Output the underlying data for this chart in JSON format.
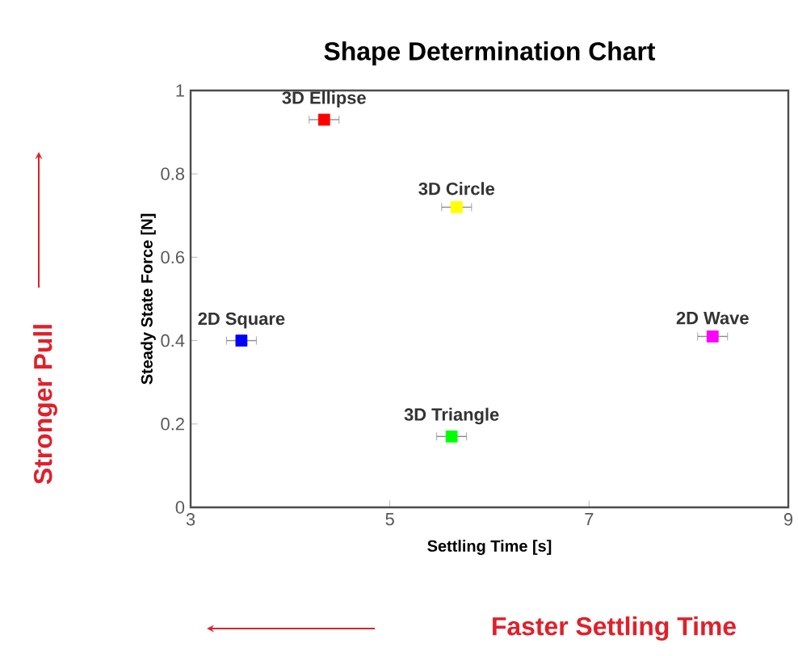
{
  "chart_data": {
    "type": "scatter",
    "title": "Shape Determination Chart",
    "xlabel": "Settling Time [s]",
    "ylabel": "Steady State Force [N]",
    "annotations": [
      "Stronger Pull",
      "Faster Settling Time"
    ],
    "xlim": [
      3,
      9
    ],
    "xticks": [
      3,
      5,
      7,
      9
    ],
    "ylim": [
      0,
      1
    ],
    "yticks": [
      0,
      0.2,
      0.4,
      0.6,
      0.8,
      1
    ],
    "marker": "square",
    "series": [
      {
        "name": "3D Ellipse",
        "color": "#ff0000",
        "x": [
          4.34
        ],
        "values": [
          0.93
        ],
        "xerrors": [
          0.15
        ]
      },
      {
        "name": "3D Circle",
        "color": "#ffff00",
        "x": [
          5.67
        ],
        "values": [
          0.72
        ],
        "xerrors": [
          0.15
        ]
      },
      {
        "name": "2D Square",
        "color": "#0000ff",
        "x": [
          3.51
        ],
        "values": [
          0.4
        ],
        "xerrors": [
          0.15
        ]
      },
      {
        "name": "2D Wave",
        "color": "#ff00ff",
        "x": [
          8.24
        ],
        "values": [
          0.41
        ],
        "xerrors": [
          0.15
        ]
      },
      {
        "name": "3D Triangle",
        "color": "#00ff00",
        "x": [
          5.62
        ],
        "values": [
          0.17
        ],
        "xerrors": [
          0.15
        ]
      }
    ]
  }
}
